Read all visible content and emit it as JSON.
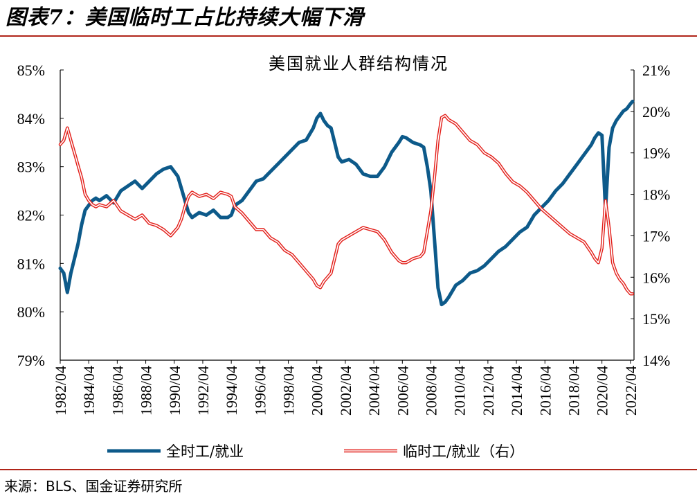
{
  "figure": {
    "title": "图表7：美国临时工占比持续大幅下滑",
    "source": "来源：BLS、国金证券研究所"
  },
  "colors": {
    "full_time": "#0d5a8a",
    "temp": "#e3201b",
    "rule": "#b02418"
  },
  "chart_data": {
    "type": "line",
    "title": "美国就业人群结构情况",
    "x_ticks": [
      "1982/04",
      "1984/04",
      "1986/04",
      "1988/04",
      "1990/04",
      "1992/04",
      "1994/04",
      "1996/04",
      "1998/04",
      "2000/04",
      "2002/04",
      "2004/04",
      "2006/04",
      "2008/04",
      "2010/04",
      "2012/04",
      "2014/04",
      "2016/04",
      "2018/04",
      "2020/04",
      "2022/04"
    ],
    "y_left_ticks": [
      "79%",
      "80%",
      "81%",
      "82%",
      "83%",
      "84%",
      "85%"
    ],
    "y_right_ticks": [
      "14%",
      "15%",
      "16%",
      "17%",
      "18%",
      "19%",
      "20%",
      "21%"
    ],
    "ylim_left": [
      79,
      85
    ],
    "ylim_right": [
      14,
      21
    ],
    "xlim": [
      1982.25,
      2022.5
    ],
    "series": [
      {
        "name": "全时工/就业",
        "axis": "left",
        "x": [
          1982.25,
          1982.5,
          1982.75,
          1983.0,
          1983.25,
          1983.5,
          1983.75,
          1984.0,
          1984.25,
          1984.5,
          1984.75,
          1985.0,
          1985.5,
          1986.0,
          1986.5,
          1987.0,
          1987.5,
          1988.0,
          1988.5,
          1989.0,
          1989.5,
          1990.0,
          1990.5,
          1990.75,
          1991.0,
          1991.25,
          1991.5,
          1992.0,
          1992.5,
          1993.0,
          1993.5,
          1994.0,
          1994.25,
          1994.5,
          1995.0,
          1995.5,
          1996.0,
          1996.5,
          1997.0,
          1997.5,
          1998.0,
          1998.5,
          1999.0,
          1999.5,
          2000.0,
          2000.25,
          2000.5,
          2000.75,
          2001.0,
          2001.25,
          2001.5,
          2001.75,
          2002.0,
          2002.5,
          2003.0,
          2003.5,
          2004.0,
          2004.5,
          2005.0,
          2005.5,
          2006.0,
          2006.25,
          2006.5,
          2007.0,
          2007.5,
          2007.75,
          2008.0,
          2008.25,
          2008.5,
          2008.75,
          2009.0,
          2009.25,
          2009.5,
          2010.0,
          2010.5,
          2011.0,
          2011.5,
          2012.0,
          2012.5,
          2013.0,
          2013.5,
          2014.0,
          2014.5,
          2015.0,
          2015.5,
          2016.0,
          2016.5,
          2017.0,
          2017.5,
          2018.0,
          2018.5,
          2019.0,
          2019.5,
          2019.75,
          2020.0,
          2020.25,
          2020.5,
          2020.75,
          2021.0,
          2021.25,
          2021.5,
          2021.75,
          2022.0,
          2022.25,
          2022.4
        ],
        "values": [
          80.9,
          80.8,
          80.4,
          80.8,
          81.1,
          81.4,
          81.8,
          82.1,
          82.2,
          82.3,
          82.35,
          82.3,
          82.4,
          82.25,
          82.5,
          82.6,
          82.7,
          82.55,
          82.7,
          82.85,
          82.95,
          83.0,
          82.8,
          82.55,
          82.3,
          82.05,
          81.95,
          82.05,
          82.0,
          82.1,
          81.95,
          81.95,
          82.0,
          82.2,
          82.3,
          82.5,
          82.7,
          82.75,
          82.9,
          83.05,
          83.2,
          83.35,
          83.5,
          83.55,
          83.8,
          84.0,
          84.1,
          83.95,
          83.85,
          83.8,
          83.5,
          83.2,
          83.1,
          83.15,
          83.05,
          82.85,
          82.8,
          82.8,
          83.0,
          83.3,
          83.5,
          83.62,
          83.6,
          83.5,
          83.45,
          83.4,
          83.0,
          82.5,
          81.5,
          80.5,
          80.15,
          80.2,
          80.3,
          80.55,
          80.65,
          80.8,
          80.85,
          80.95,
          81.1,
          81.25,
          81.35,
          81.5,
          81.65,
          81.75,
          82.0,
          82.15,
          82.3,
          82.5,
          82.65,
          82.85,
          83.05,
          83.25,
          83.45,
          83.6,
          83.7,
          83.65,
          82.1,
          83.4,
          83.8,
          83.95,
          84.05,
          84.15,
          84.2,
          84.3,
          84.35
        ]
      },
      {
        "name": "临时工/就业（右）",
        "axis": "right",
        "x": [
          1982.25,
          1982.5,
          1982.75,
          1983.0,
          1983.25,
          1983.5,
          1983.75,
          1984.0,
          1984.25,
          1984.5,
          1984.75,
          1985.0,
          1985.5,
          1986.0,
          1986.5,
          1987.0,
          1987.5,
          1988.0,
          1988.5,
          1989.0,
          1989.5,
          1990.0,
          1990.5,
          1990.75,
          1991.0,
          1991.25,
          1991.5,
          1992.0,
          1992.5,
          1993.0,
          1993.5,
          1994.0,
          1994.25,
          1994.5,
          1995.0,
          1995.5,
          1996.0,
          1996.5,
          1997.0,
          1997.5,
          1998.0,
          1998.5,
          1999.0,
          1999.5,
          2000.0,
          2000.25,
          2000.5,
          2000.75,
          2001.0,
          2001.25,
          2001.5,
          2001.75,
          2002.0,
          2002.5,
          2003.0,
          2003.5,
          2004.0,
          2004.5,
          2005.0,
          2005.5,
          2006.0,
          2006.25,
          2006.5,
          2007.0,
          2007.5,
          2007.75,
          2008.0,
          2008.25,
          2008.5,
          2008.75,
          2009.0,
          2009.25,
          2009.5,
          2010.0,
          2010.5,
          2011.0,
          2011.5,
          2012.0,
          2012.5,
          2013.0,
          2013.5,
          2014.0,
          2014.5,
          2015.0,
          2015.5,
          2016.0,
          2016.5,
          2017.0,
          2017.5,
          2018.0,
          2018.5,
          2019.0,
          2019.5,
          2019.75,
          2020.0,
          2020.25,
          2020.5,
          2020.75,
          2021.0,
          2021.25,
          2021.5,
          2021.75,
          2022.0,
          2022.25,
          2022.4
        ],
        "values": [
          19.2,
          19.3,
          19.6,
          19.3,
          19.0,
          18.7,
          18.4,
          18.0,
          17.85,
          17.75,
          17.7,
          17.75,
          17.7,
          17.85,
          17.6,
          17.5,
          17.4,
          17.5,
          17.3,
          17.25,
          17.15,
          17.0,
          17.2,
          17.4,
          17.7,
          17.95,
          18.05,
          17.95,
          18.0,
          17.9,
          18.05,
          18.0,
          17.95,
          17.7,
          17.55,
          17.35,
          17.15,
          17.15,
          16.95,
          16.85,
          16.65,
          16.55,
          16.35,
          16.15,
          15.95,
          15.8,
          15.75,
          15.9,
          16.0,
          16.1,
          16.45,
          16.8,
          16.9,
          17.0,
          17.1,
          17.2,
          17.15,
          17.1,
          16.9,
          16.6,
          16.4,
          16.35,
          16.35,
          16.45,
          16.5,
          16.6,
          17.1,
          17.6,
          18.4,
          19.3,
          19.85,
          19.9,
          19.8,
          19.7,
          19.5,
          19.3,
          19.2,
          19.0,
          18.9,
          18.75,
          18.5,
          18.3,
          18.2,
          18.05,
          17.85,
          17.65,
          17.5,
          17.35,
          17.2,
          17.05,
          16.95,
          16.85,
          16.6,
          16.45,
          16.35,
          16.7,
          17.85,
          17.2,
          16.35,
          16.1,
          15.95,
          15.85,
          15.7,
          15.6,
          15.6
        ]
      }
    ],
    "legend": [
      {
        "label": "全时工/就业",
        "style": "solid-thick"
      },
      {
        "label": "临时工/就业（右）",
        "style": "double-line"
      }
    ],
    "legend_position": "bottom",
    "grid": false
  }
}
